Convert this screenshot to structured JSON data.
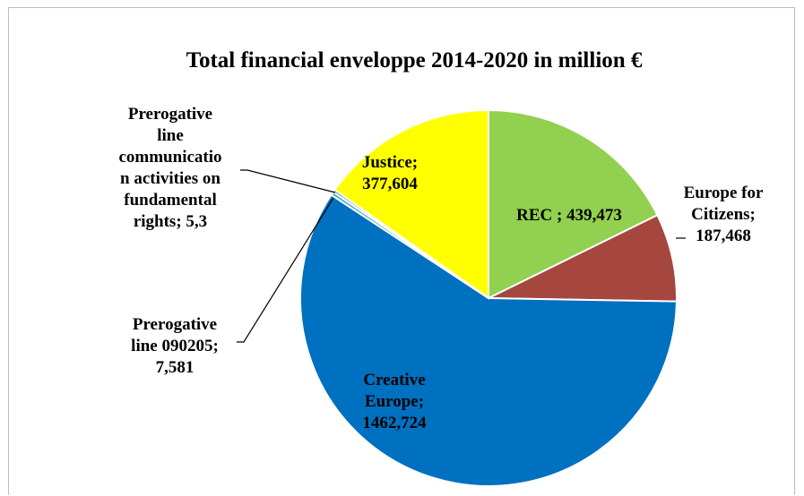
{
  "chart_data": {
    "type": "pie",
    "title": "Total financial enveloppe 2014-2020 in million €",
    "slices": [
      {
        "name": "REC",
        "value": 439.473,
        "label_lines": [
          "REC ; 439,473"
        ],
        "color": "#92d050"
      },
      {
        "name": "Europe for Citizens",
        "value": 187.468,
        "label_lines": [
          "Europe for",
          "Citizens;",
          "187,468"
        ],
        "color": "#a5463f"
      },
      {
        "name": "Creative Europe",
        "value": 1462.724,
        "label_lines": [
          "Creative",
          "Europe;",
          "1462,724"
        ],
        "color": "#0070c0"
      },
      {
        "name": "Prerogative line 090205",
        "value": 7.581,
        "label_lines": [
          "Prerogative",
          "line 090205;",
          "7,581"
        ],
        "color": "#4bacc6"
      },
      {
        "name": "Prerogative line communication activities on fundamental rights",
        "value": 5.3,
        "label_lines": [
          "Prerogative",
          "line",
          "communicatio",
          "n activities on",
          "fundamental",
          "rights; 5,3"
        ],
        "color": "#2e6b8a"
      },
      {
        "name": "Justice",
        "value": 377.604,
        "label_lines": [
          "Justice;",
          "377,604"
        ],
        "color": "#ffff00"
      }
    ],
    "legend": "none",
    "start_angle": "top, clockwise"
  }
}
